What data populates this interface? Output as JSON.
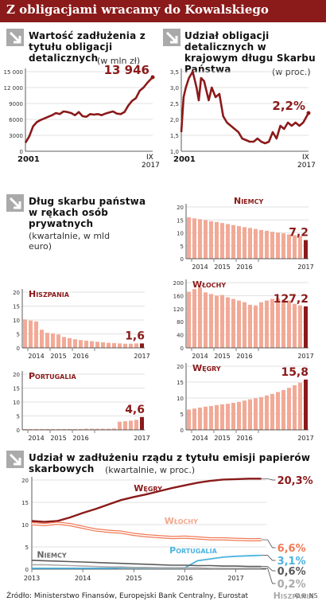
{
  "header": {
    "title": "Z obligacjami wracamy do Kowalskiego"
  },
  "panel1": {
    "title": "Wartość zadłużenia z tytułu obligacji detalicznych",
    "unit": "(w mln zł)"
  },
  "panel2": {
    "title": "Udział obligacji detalicznych w krajowym długu Skarbu Państwa",
    "unit": "(w proc.)"
  },
  "panel3": {
    "title": "Dług skarbu państwa w rękach osób prywatnych",
    "unit": "(kwartalnie, w mld euro)"
  },
  "panel4": {
    "title": "Udział w zadłużeniu rządu z tytułu emisji papierów skarbowych",
    "unit": "(kwartalnie, w proc.)"
  },
  "source": "Źródło: Ministerstwo Finansów, Europejski Bank Centralny, Eurostat",
  "logo_text": "©℗ NS",
  "colors": {
    "accent": "#8b1a1a",
    "bar": "#f2aa97",
    "line_light": "#f07a56",
    "blue": "#4bb3e0",
    "gray": "#8c8c8c"
  },
  "chart_data": [
    {
      "type": "line",
      "name": "wartosc",
      "x": [
        2001,
        2001.5,
        2002,
        2002.5,
        2003,
        2003.5,
        2004,
        2004.5,
        2005,
        2005.5,
        2006,
        2006.5,
        2007,
        2007.5,
        2008,
        2008.5,
        2009,
        2009.5,
        2010,
        2010.5,
        2011,
        2011.5,
        2012,
        2012.5,
        2013,
        2013.5,
        2014,
        2014.5,
        2015,
        2015.5,
        2016,
        2016.5,
        2017,
        2017.4,
        2017.7
      ],
      "y": [
        1600,
        2800,
        4700,
        5500,
        5900,
        6200,
        6500,
        6800,
        7200,
        7000,
        7500,
        7400,
        7200,
        6800,
        7400,
        6600,
        6500,
        7000,
        6900,
        7000,
        6800,
        7100,
        7300,
        7500,
        7100,
        7000,
        7400,
        8600,
        9500,
        10000,
        11400,
        12000,
        12900,
        13500,
        13946
      ],
      "ylim": [
        0,
        15000
      ],
      "yticks": [
        0,
        3000,
        6000,
        9000,
        12000,
        15000
      ],
      "ytick_labels": [
        "0",
        "3000",
        "6000",
        "9000",
        "12 000",
        "15 000"
      ],
      "xticks": [
        "2001",
        "IX 2017"
      ],
      "label": "13 946"
    },
    {
      "type": "line",
      "name": "udzial",
      "x": [
        2001,
        2001.3,
        2001.6,
        2002,
        2002.5,
        2003,
        2003.3,
        2003.6,
        2004,
        2004.3,
        2004.6,
        2005,
        2005.5,
        2006,
        2006.5,
        2007,
        2007.5,
        2008,
        2008.5,
        2009,
        2009.5,
        2010,
        2010.5,
        2011,
        2011.5,
        2012,
        2012.5,
        2013,
        2013.5,
        2014,
        2014.5,
        2015,
        2015.5,
        2016,
        2016.5,
        2017,
        2017.7
      ],
      "y": [
        1.6,
        2.7,
        3.0,
        3.3,
        3.5,
        3.0,
        2.6,
        3.3,
        3.2,
        2.9,
        2.6,
        3.0,
        2.7,
        2.8,
        2.1,
        1.9,
        1.8,
        1.7,
        1.6,
        1.4,
        1.35,
        1.3,
        1.3,
        1.4,
        1.3,
        1.25,
        1.3,
        1.6,
        1.4,
        1.8,
        1.7,
        1.9,
        1.8,
        1.9,
        1.8,
        1.9,
        2.2
      ],
      "ylim": [
        1.0,
        3.5
      ],
      "yticks": [
        1.0,
        1.5,
        2.0,
        2.5,
        3.0,
        3.5
      ],
      "ytick_labels": [
        "1,0",
        "1,5",
        "2,0",
        "2,5",
        "3,0",
        "3,5"
      ],
      "xticks": [
        "2001",
        "IX 2017"
      ],
      "label": "2,2%"
    },
    {
      "type": "bar",
      "name": "Niemcy",
      "label": "7,2",
      "ylim": [
        0,
        20
      ],
      "yticks": [
        0,
        5,
        10,
        15,
        20
      ],
      "ytick_labels": [
        "0",
        "5",
        "10",
        "15",
        "20"
      ],
      "values": [
        16,
        15.6,
        15.3,
        14.9,
        14.5,
        14.2,
        13.8,
        13.4,
        13,
        12.6,
        12.2,
        11.9,
        11.5,
        11.1,
        10.8,
        10.4,
        10.1,
        9.8,
        9.4,
        9.1,
        8.7,
        7.2
      ],
      "xlabels": [
        "2014",
        "2015",
        "2016",
        "2017"
      ]
    },
    {
      "type": "bar",
      "name": "Hiszpania",
      "label": "1,6",
      "ylim": [
        0,
        20
      ],
      "yticks": [
        0,
        5,
        10,
        15,
        20
      ],
      "ytick_labels": [
        "0",
        "5",
        "10",
        "15",
        "20"
      ],
      "values": [
        10.2,
        9.8,
        9.5,
        6.5,
        5.4,
        5.2,
        4.8,
        3.9,
        3.5,
        3.1,
        2.8,
        2.6,
        2.4,
        2.2,
        2.0,
        1.8,
        1.7,
        1.6,
        1.5,
        1.5,
        1.6,
        1.6
      ],
      "xlabels": [
        "2014",
        "2015",
        "2016",
        "2017"
      ]
    },
    {
      "type": "bar",
      "name": "Włochy",
      "label": "127,2",
      "ylim": [
        0,
        200
      ],
      "yticks": [
        0,
        40,
        80,
        120,
        160,
        200
      ],
      "ytick_labels": [
        "0",
        "40",
        "80",
        "120",
        "160",
        "200"
      ],
      "values": [
        172,
        180,
        185,
        170,
        165,
        160,
        162,
        155,
        150,
        145,
        140,
        132,
        130,
        140,
        145,
        150,
        152,
        148,
        145,
        135,
        130,
        127.2
      ],
      "xlabels": [
        "2014",
        "2015",
        "2016",
        "2017"
      ]
    },
    {
      "type": "bar",
      "name": "Portugalia",
      "label": "4,6",
      "ylim": [
        0,
        20
      ],
      "yticks": [
        0,
        5,
        10,
        15,
        20
      ],
      "ytick_labels": [
        "0",
        "5",
        "10",
        "15",
        "20"
      ],
      "values": [
        0.3,
        0.3,
        0.3,
        0.3,
        0.3,
        0.3,
        0.3,
        0.3,
        0.3,
        0.3,
        0.3,
        0.4,
        0.4,
        0.4,
        0.4,
        0.4,
        0.5,
        2.9,
        3.1,
        3.3,
        3.6,
        4.6
      ],
      "xlabels": [
        "2014",
        "2015",
        "2016",
        "2017"
      ]
    },
    {
      "type": "bar",
      "name": "Węgry",
      "label": "15,8",
      "ylim": [
        0,
        20
      ],
      "yticks": [
        0,
        5,
        10,
        15,
        20
      ],
      "ytick_labels": [
        "0",
        "5",
        "10",
        "15",
        "20"
      ],
      "values": [
        6.4,
        6.7,
        7.0,
        7.3,
        7.5,
        7.8,
        8.0,
        8.2,
        8.5,
        8.8,
        9.2,
        9.6,
        9.9,
        10.3,
        10.8,
        11.3,
        11.9,
        12.5,
        13.2,
        14.0,
        14.8,
        15.8
      ],
      "xlabels": [
        "2014",
        "2015",
        "2016",
        "2017"
      ]
    },
    {
      "type": "line",
      "name": "udzial_kraje",
      "x": [
        2013,
        2013.25,
        2013.5,
        2013.75,
        2014,
        2014.25,
        2014.5,
        2014.75,
        2015,
        2015.25,
        2015.5,
        2015.75,
        2016,
        2016.25,
        2016.5,
        2016.75,
        2017,
        2017.25,
        2017.5
      ],
      "xlim": [
        2013,
        2017.6
      ],
      "ylim": [
        0,
        20
      ],
      "yticks": [
        0,
        5,
        10,
        15,
        20
      ],
      "ytick_labels": [
        "0",
        "5",
        "10",
        "15",
        "20"
      ],
      "xticks": [
        "2013",
        "2014",
        "2015",
        "2016",
        "2017"
      ],
      "series": [
        {
          "name": "Węgry",
          "label": "20,3%",
          "values": [
            10.8,
            10.6,
            10.8,
            11.6,
            12.6,
            13.5,
            14.5,
            15.5,
            16.2,
            16.8,
            17.5,
            18.2,
            18.8,
            19.4,
            19.8,
            20.1,
            20.2,
            20.3,
            20.3
          ]
        },
        {
          "name": "Włochy",
          "label": "6,6%",
          "values": [
            10.2,
            10.0,
            10.3,
            10.0,
            9.4,
            8.8,
            8.5,
            8.3,
            7.8,
            7.5,
            7.3,
            7.1,
            7.2,
            7.0,
            6.8,
            6.8,
            6.7,
            6.6,
            6.6
          ]
        },
        {
          "name": "Portugalia",
          "label": "3,1%",
          "values": [
            0.2,
            0.2,
            0.2,
            0.2,
            0.2,
            0.2,
            0.2,
            0.3,
            0.3,
            0.3,
            0.3,
            0.3,
            0.3,
            1.9,
            2.3,
            2.7,
            2.9,
            3.0,
            3.1
          ]
        },
        {
          "name": "Niemcy",
          "label": "0,6%",
          "values": [
            2.0,
            1.9,
            1.8,
            1.7,
            1.6,
            1.5,
            1.4,
            1.3,
            1.2,
            1.1,
            1.0,
            0.9,
            0.9,
            0.8,
            0.8,
            0.7,
            0.7,
            0.6,
            0.6
          ]
        },
        {
          "name": "Hiszpania",
          "label": "0,2%",
          "values": [
            1.0,
            1.0,
            0.9,
            0.8,
            0.7,
            0.6,
            0.5,
            0.5,
            0.4,
            0.4,
            0.3,
            0.3,
            0.3,
            0.3,
            0.2,
            0.2,
            0.2,
            0.2,
            0.2
          ]
        }
      ]
    }
  ]
}
